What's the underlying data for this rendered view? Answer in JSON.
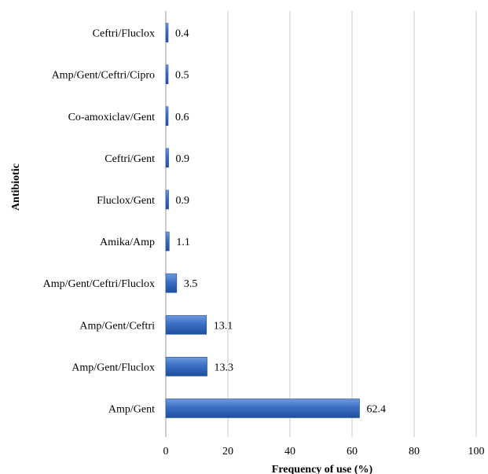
{
  "chart_data": {
    "type": "bar",
    "orientation": "horizontal",
    "categories": [
      "Ceftri/Fluclox",
      "Amp/Gent/Ceftri/Cipro",
      "Co-amoxiclav/Gent",
      "Ceftri/Gent",
      "Fluclox/Gent",
      "Amika/Amp",
      "Amp/Gent/Ceftri/Fluclox",
      "Amp/Gent/Ceftri",
      "Amp/Gent/Fluclox",
      "Amp/Gent"
    ],
    "values": [
      0.4,
      0.5,
      0.6,
      0.9,
      0.9,
      1.1,
      3.5,
      13.1,
      13.3,
      62.4
    ],
    "value_labels": [
      "0.4",
      "0.5",
      "0.6",
      "0.9",
      "0.9",
      "1.1",
      "3.5",
      "13.1",
      "13.3",
      "62.4"
    ],
    "xlabel": "Frequency of use (%)",
    "ylabel": "Antibiotic",
    "xlim": [
      0,
      100
    ],
    "xticks": [
      "0",
      "20",
      "40",
      "60",
      "80",
      "100"
    ],
    "grid": "vertical",
    "legend": "none",
    "colors": {
      "bar_light": "#6f9be0",
      "bar_mid": "#3a6fc4",
      "bar_dark": "#1f4f9e",
      "gridline": "#c8c8c8",
      "axis": "#999999"
    }
  }
}
